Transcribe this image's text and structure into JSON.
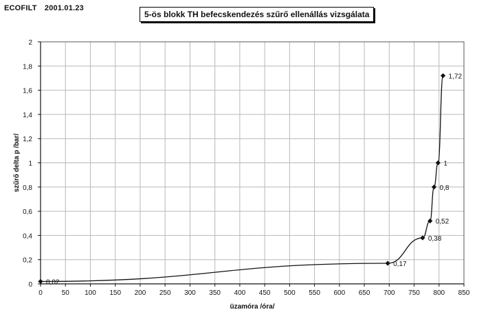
{
  "header": {
    "brand": "ECOFILT",
    "date": "2001.01.23"
  },
  "chart_data": {
    "type": "line",
    "title": "5-ös blokk TH befecskendezés szűrő ellenállás vizsgálata",
    "xlabel": "üzamóra /óra/",
    "ylabel": "szűrő delta p /bar/",
    "xlim": [
      0,
      850
    ],
    "ylim": [
      0,
      2
    ],
    "x_ticks": [
      "0",
      "50",
      "100",
      "150",
      "200",
      "250",
      "300",
      "350",
      "400",
      "450",
      "500",
      "550",
      "600",
      "650",
      "700",
      "750",
      "800",
      "850"
    ],
    "y_ticks": [
      "0",
      "0,2",
      "0,4",
      "0,6",
      "0,8",
      "1",
      "1,2",
      "1,4",
      "1,6",
      "1,8",
      "2"
    ],
    "grid": true,
    "series": [
      {
        "points": [
          {
            "x": 0,
            "y": 0.02,
            "label": "0,02"
          },
          {
            "x": 697,
            "y": 0.17,
            "label": "0,17"
          },
          {
            "x": 767,
            "y": 0.38,
            "label": "0,38"
          },
          {
            "x": 782,
            "y": 0.52,
            "label": "0,52"
          },
          {
            "x": 790,
            "y": 0.8,
            "label": "0,8"
          },
          {
            "x": 798,
            "y": 1.0,
            "label": "1"
          },
          {
            "x": 808,
            "y": 1.72,
            "label": "1,72"
          }
        ]
      }
    ],
    "colors": {
      "line": "#111111",
      "grid": "#b8b8b8",
      "marker": "#111111"
    }
  }
}
